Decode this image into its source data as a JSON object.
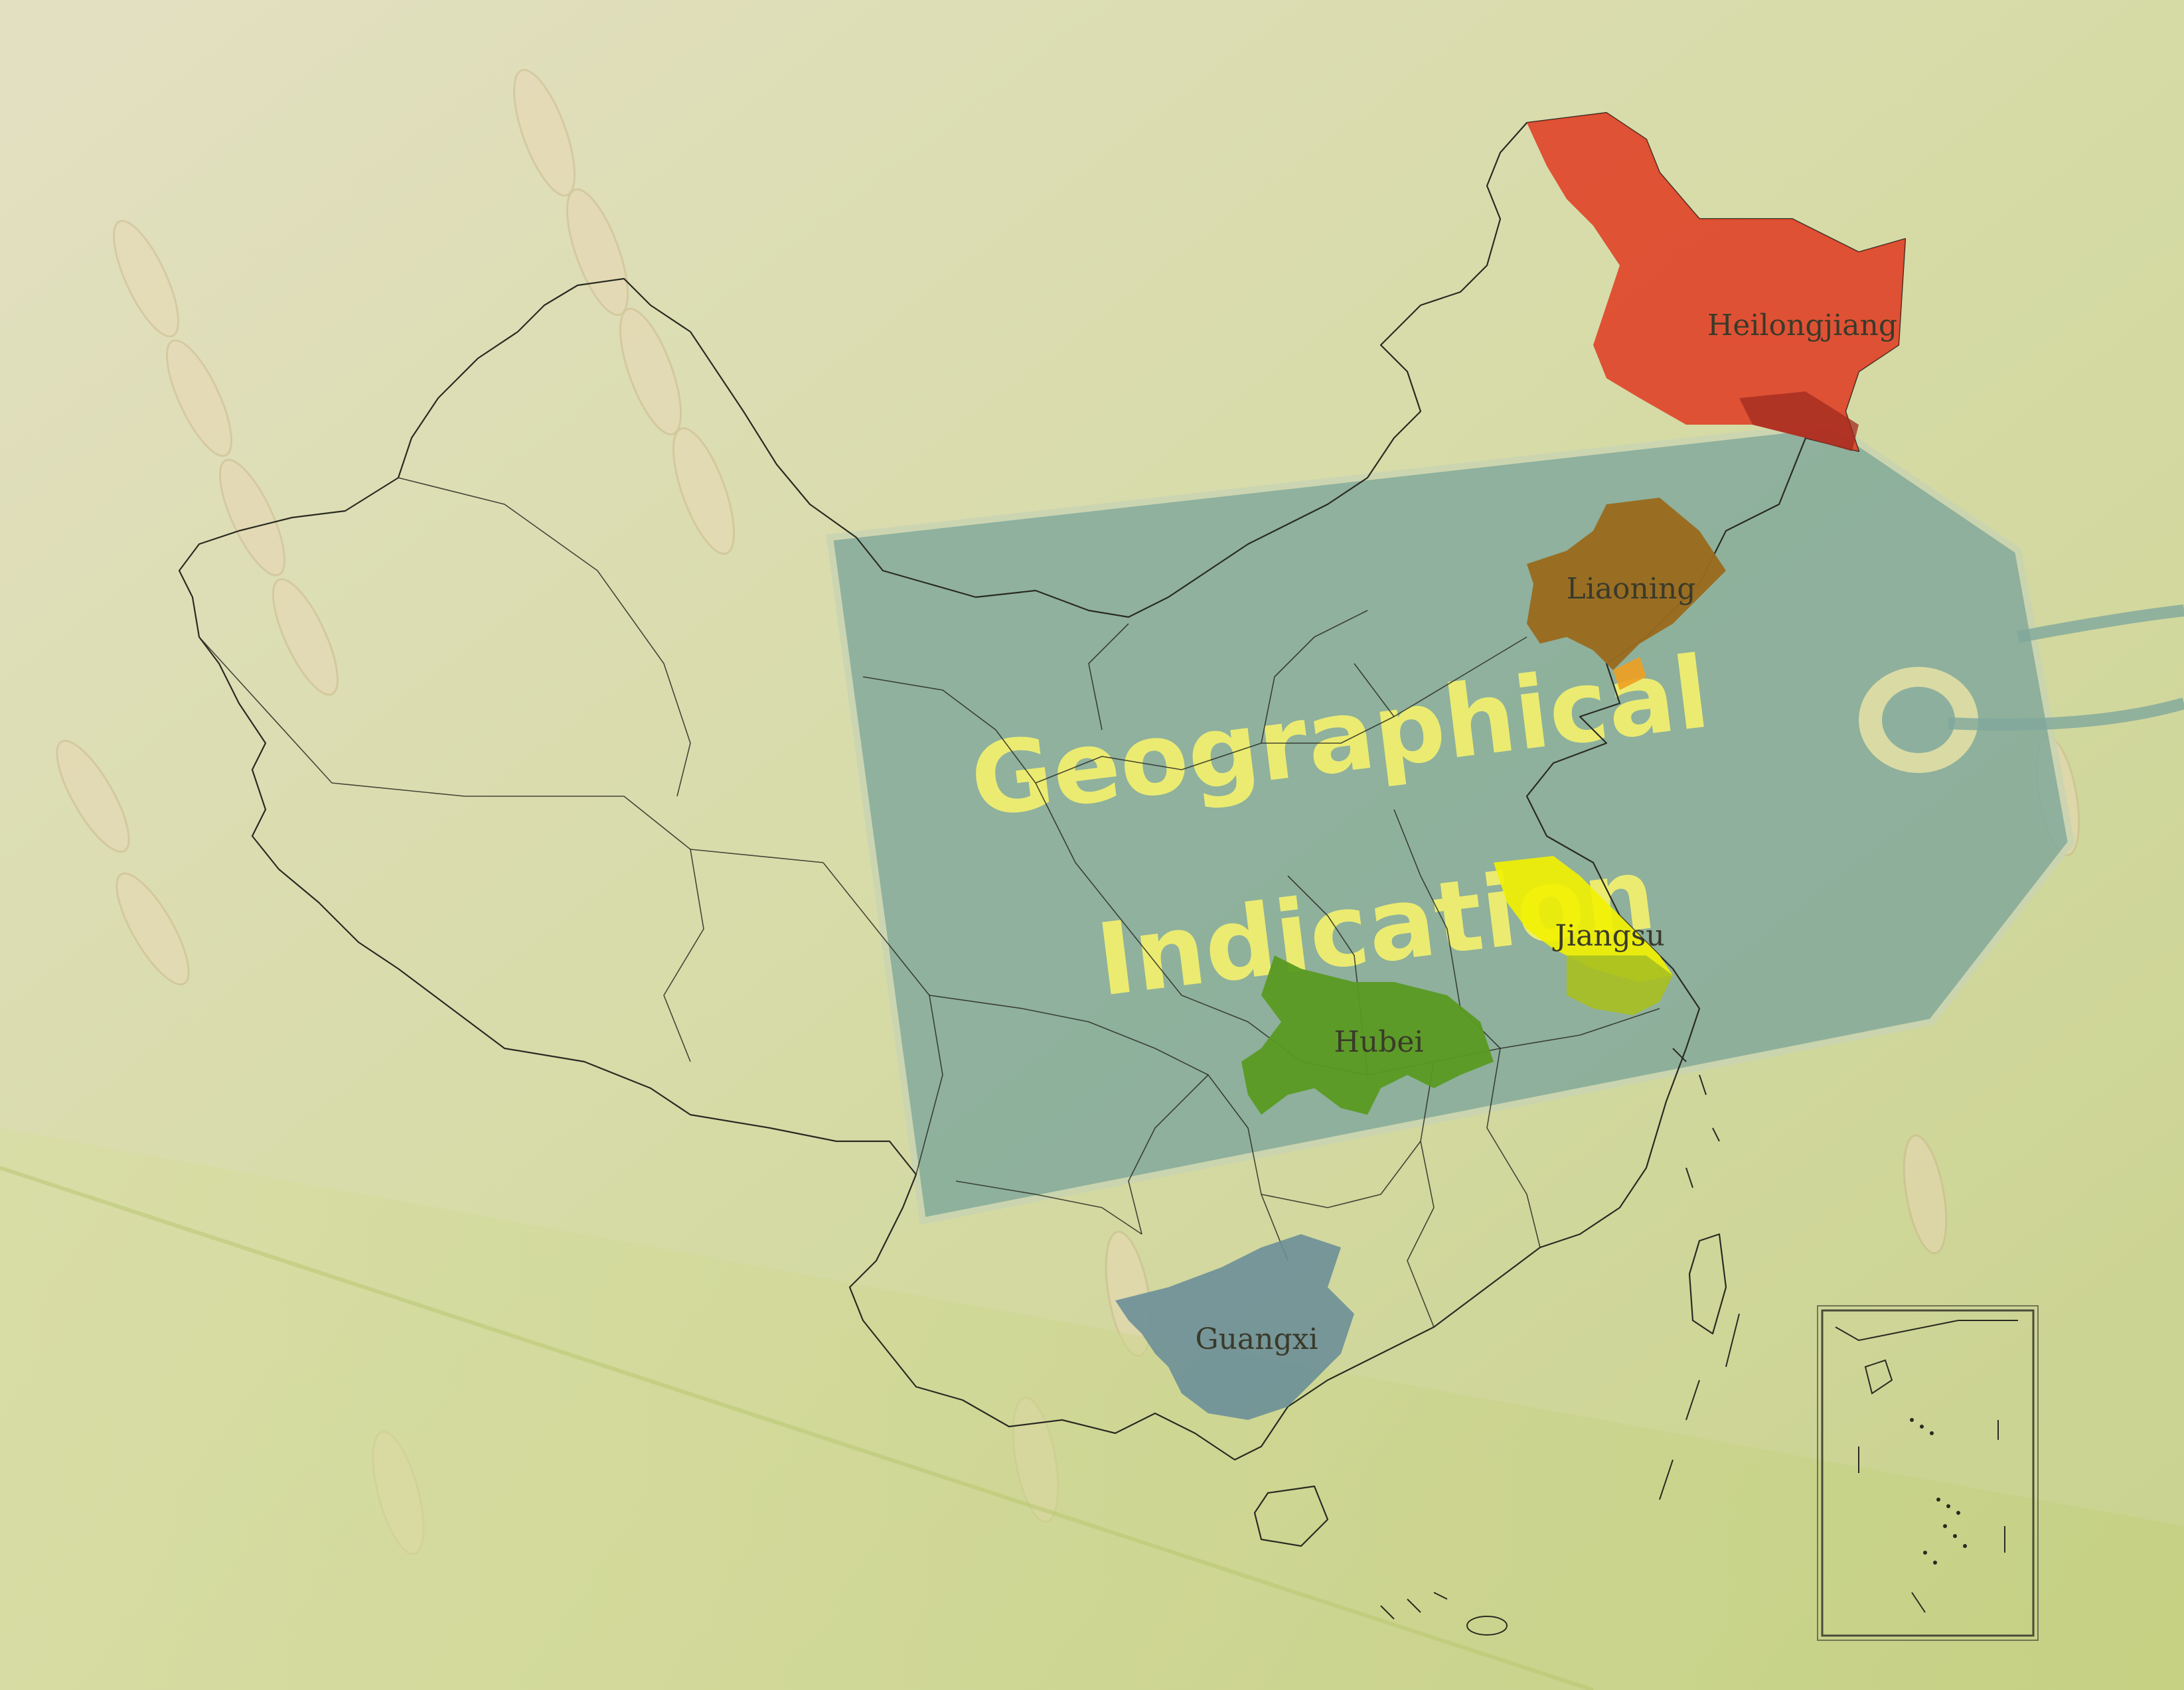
{
  "map": {
    "tag_text": {
      "line1": "Geographical",
      "line2": "Indication"
    },
    "regions": [
      {
        "id": "heilongjiang",
        "label": "Heilongjiang",
        "color": "#e0452a"
      },
      {
        "id": "liaoning",
        "label": "Liaoning",
        "color": "#9a6a1e"
      },
      {
        "id": "jiangsu",
        "label": "Jiangsu",
        "color": "#f3f200"
      },
      {
        "id": "hubei",
        "label": "Hubei",
        "color": "#5a9a22"
      },
      {
        "id": "guangxi",
        "label": "Guangxi",
        "color": "#6b8f98"
      }
    ],
    "colors": {
      "tag_fill": "#7fa89c",
      "tag_text": "#f2ef6e",
      "background": "#d8dba8"
    }
  }
}
